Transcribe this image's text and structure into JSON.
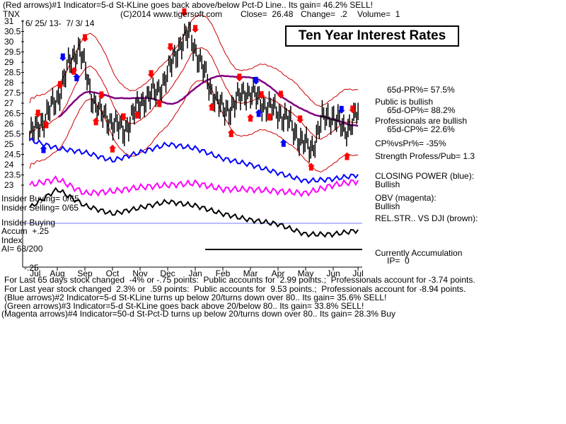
{
  "header": {
    "line1": "(Red arrows)#1 Indicator=5-d St-KLine goes back above/below Pct-D Line.. Its gain= 46.2% SELL!",
    "ticker": "TNX",
    "copyright": "(C)2014 www.tigersoft.com",
    "close": "Close=  26.48",
    "change": "Change=  .2",
    "volume": "Volume=  1",
    "date_range": "6/ 25/ 13-  7/ 3/ 14"
  },
  "title": "Ten Year Interest Rates",
  "right_panel": {
    "pr": "65d-PR%= 57.5%",
    "public": "Public is bullish",
    "op": "65d-OP%= 88.2%",
    "pros": "Professionals are bullish",
    "cp": "65d-CP%= 22.6%",
    "cpvspr": "CP%vsPr%= -35%",
    "strength": "Strength Profess/Pub= 1.3",
    "closing_power": "CLOSING POWER (blue):",
    "closing_power_val": "Bullish",
    "obv": "OBV (magenta):",
    "obv_val": "Bullish",
    "relstr": "REL.STR.. VS DJI (brown):",
    "accum": "Currently Accumulation",
    "ip": "IP=  0"
  },
  "left_panel": {
    "insider_buying": "Insider Buying= 0/65",
    "insider_selling": "Insider Selling= 0/65",
    "insider_label": "Insider Buying",
    "accum_label": "Accum  +.25",
    "index_label": "Index",
    "ai": "AI= 68/200",
    "minus25": "-.25"
  },
  "footer": {
    "l1": "For Last 65 days stock changed  -4% or -.75 points:  Public accounts for  2.99 points.;  Professionals account for -3.74 points.",
    "l2": "For Last year stock changed  2.3% or  .59 points:  Public accounts for  9.53 points.;  Professionals account for -8.94 points.",
    "l3": "(Blue arrows)#2 Indicator=5-d St-KLine turns up below 20/turns down over 80.. Its gain= 35.6% SELL!",
    "l4": "(Green arrows)#3 Indicator=5-d St-KLine goes back above 20/below 80.. Its gain= 33.8% SELL!",
    "l5": "(Magenta arrows)#4 Indicator=50-d St-Pct-D turns up below 20/turns down over 80.. Its gain= 28.3% Buy"
  },
  "colors": {
    "price": "#000000",
    "bands": "#cc0000",
    "ma": "#800080",
    "closing_power": "#0000ff",
    "obv": "#ff00ff",
    "relstr": "#000000",
    "red_arrow": "#ff0000",
    "blue_arrow": "#0000ff"
  },
  "chart_data": {
    "type": "line",
    "title": "Ten Year Interest Rates",
    "y_ticks": [
      31,
      30.5,
      30,
      29.5,
      29,
      28.5,
      28,
      27.5,
      27,
      26.5,
      26,
      25.5,
      25,
      24.5,
      24,
      23.5,
      23
    ],
    "ylim": [
      23,
      31
    ],
    "x_ticks": [
      "Jul",
      "Aug",
      "Sep",
      "Oct",
      "Nov",
      "Dec",
      "Jan",
      "Feb",
      "Mar",
      "Apr",
      "May",
      "Jun",
      "Jul"
    ],
    "month_index": [
      0.2,
      1,
      2,
      3,
      4,
      5,
      6,
      7,
      8,
      9,
      10,
      11,
      11.9
    ],
    "grid": false,
    "series": [
      {
        "name": "TNX",
        "x": [
          0,
          0.5,
          1,
          1.4,
          1.8,
          2.2,
          2.6,
          3,
          3.4,
          3.8,
          4.2,
          4.6,
          5,
          5.4,
          5.8,
          6.2,
          6.6,
          7,
          7.4,
          7.8,
          8.2,
          8.6,
          9,
          9.4,
          9.8,
          10.2,
          10.6,
          11,
          11.4,
          11.9
        ],
        "values": [
          25.4,
          26.2,
          27.2,
          28.8,
          29.8,
          27.5,
          26.4,
          26.1,
          25.6,
          26.6,
          27.3,
          27.5,
          28.4,
          29.8,
          30.4,
          28.9,
          27.6,
          26.6,
          26.9,
          27.6,
          27.3,
          26.8,
          26.6,
          26.1,
          25.2,
          24.7,
          26.2,
          26.4,
          25.6,
          26.5
        ]
      },
      {
        "name": "CLOSING POWER",
        "x": [
          0,
          1,
          2,
          3,
          4,
          5,
          6,
          7,
          8,
          9,
          10,
          11,
          11.9
        ],
        "values": [
          25.2,
          24.8,
          24.6,
          24.2,
          24.6,
          25.0,
          24.8,
          24.3,
          24.0,
          23.6,
          23.2,
          23.3,
          23.5
        ]
      },
      {
        "name": "OBV",
        "x": [
          0,
          1,
          2,
          3,
          4,
          5,
          6,
          7,
          8,
          9,
          10,
          11,
          11.9
        ],
        "values": [
          23.0,
          23.3,
          22.6,
          22.7,
          22.9,
          23.0,
          23.1,
          22.8,
          22.8,
          22.7,
          22.6,
          23.0,
          23.2
        ]
      },
      {
        "name": "REL.STR.. VS DJI",
        "x": [
          0,
          1,
          2,
          3,
          4,
          5,
          6,
          7,
          8,
          9,
          10,
          11,
          11.9
        ],
        "values": [
          21.9,
          22.8,
          22.0,
          21.6,
          21.9,
          22.2,
          22.0,
          21.6,
          21.3,
          21.1,
          20.6,
          20.6,
          20.8
        ]
      }
    ],
    "annotations": [
      "red arrows",
      "blue arrows"
    ]
  }
}
